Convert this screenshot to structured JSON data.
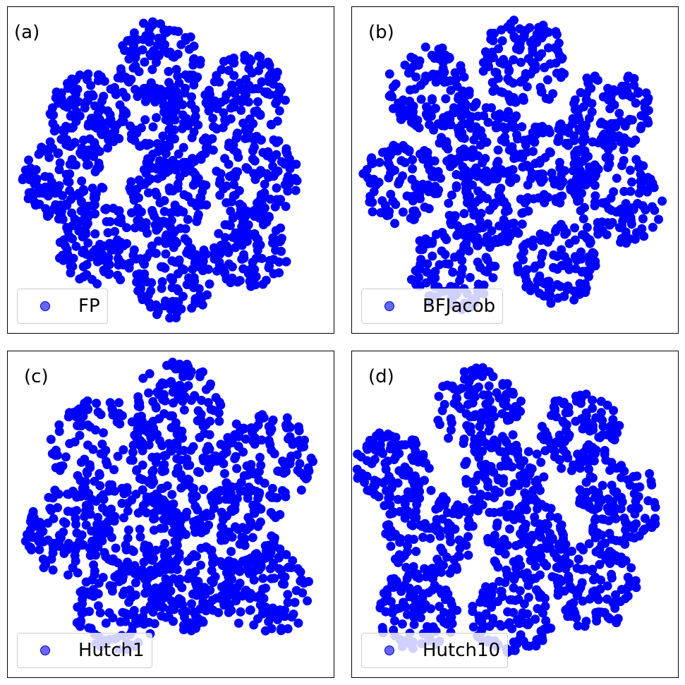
{
  "colors": {
    "points": "#0000ff",
    "frame": "#000000",
    "legend_border": "#cccccc"
  },
  "chart_data": [
    {
      "type": "scatter",
      "panel_label": "(a)",
      "legend": {
        "label": "FP",
        "placement": "lower-left"
      },
      "axes_visible": false,
      "grid": false,
      "clusters": [
        {
          "center": [
            0.46,
            0.17
          ],
          "radius": 0.125
        },
        {
          "center": [
            0.73,
            0.27
          ],
          "radius": 0.12
        },
        {
          "center": [
            0.25,
            0.33
          ],
          "radius": 0.12
        },
        {
          "center": [
            0.51,
            0.38
          ],
          "radius": 0.13
        },
        {
          "center": [
            0.76,
            0.52
          ],
          "radius": 0.125
        },
        {
          "center": [
            0.17,
            0.53
          ],
          "radius": 0.12
        },
        {
          "center": [
            0.49,
            0.59
          ],
          "radius": 0.12
        },
        {
          "center": [
            0.28,
            0.73
          ],
          "radius": 0.12
        },
        {
          "center": [
            0.74,
            0.74
          ],
          "radius": 0.115
        },
        {
          "center": [
            0.51,
            0.83
          ],
          "radius": 0.12
        }
      ]
    },
    {
      "type": "scatter",
      "panel_label": "(b)",
      "legend": {
        "label": "BFJacob",
        "placement": "lower-left"
      },
      "axes_visible": false,
      "grid": false,
      "clusters": [
        {
          "center": [
            0.53,
            0.17
          ],
          "radius": 0.13
        },
        {
          "center": [
            0.24,
            0.25
          ],
          "radius": 0.125
        },
        {
          "center": [
            0.79,
            0.32
          ],
          "radius": 0.12
        },
        {
          "center": [
            0.4,
            0.41
          ],
          "radius": 0.125
        },
        {
          "center": [
            0.62,
            0.48
          ],
          "radius": 0.12
        },
        {
          "center": [
            0.15,
            0.54
          ],
          "radius": 0.12
        },
        {
          "center": [
            0.82,
            0.59
          ],
          "radius": 0.13
        },
        {
          "center": [
            0.42,
            0.62
          ],
          "radius": 0.12
        },
        {
          "center": [
            0.31,
            0.8
          ],
          "radius": 0.125
        },
        {
          "center": [
            0.63,
            0.79
          ],
          "radius": 0.12
        }
      ]
    },
    {
      "type": "scatter",
      "panel_label": "(c)",
      "legend": {
        "label": "Hutch1",
        "placement": "lower-left"
      },
      "axes_visible": false,
      "grid": false,
      "clusters": [
        {
          "center": [
            0.52,
            0.17
          ],
          "radius": 0.13
        },
        {
          "center": [
            0.28,
            0.3
          ],
          "radius": 0.15
        },
        {
          "center": [
            0.79,
            0.33
          ],
          "radius": 0.14
        },
        {
          "center": [
            0.55,
            0.41
          ],
          "radius": 0.13
        },
        {
          "center": [
            0.18,
            0.55
          ],
          "radius": 0.13
        },
        {
          "center": [
            0.41,
            0.56
          ],
          "radius": 0.13
        },
        {
          "center": [
            0.71,
            0.55
          ],
          "radius": 0.13
        },
        {
          "center": [
            0.34,
            0.78
          ],
          "radius": 0.13
        },
        {
          "center": [
            0.56,
            0.73
          ],
          "radius": 0.12
        },
        {
          "center": [
            0.79,
            0.74
          ],
          "radius": 0.13
        }
      ]
    },
    {
      "type": "scatter",
      "panel_label": "(d)",
      "legend": {
        "label": "Hutch10",
        "placement": "lower-left"
      },
      "axes_visible": false,
      "grid": false,
      "clusters": [
        {
          "center": [
            0.39,
            0.18
          ],
          "radius": 0.125
        },
        {
          "center": [
            0.7,
            0.25
          ],
          "radius": 0.12
        },
        {
          "center": [
            0.13,
            0.36
          ],
          "radius": 0.115
        },
        {
          "center": [
            0.46,
            0.39
          ],
          "radius": 0.125
        },
        {
          "center": [
            0.82,
            0.47
          ],
          "radius": 0.125
        },
        {
          "center": [
            0.24,
            0.56
          ],
          "radius": 0.13
        },
        {
          "center": [
            0.54,
            0.58
          ],
          "radius": 0.12
        },
        {
          "center": [
            0.74,
            0.72
          ],
          "radius": 0.125
        },
        {
          "center": [
            0.2,
            0.79
          ],
          "radius": 0.12
        },
        {
          "center": [
            0.49,
            0.81
          ],
          "radius": 0.12
        }
      ]
    }
  ]
}
